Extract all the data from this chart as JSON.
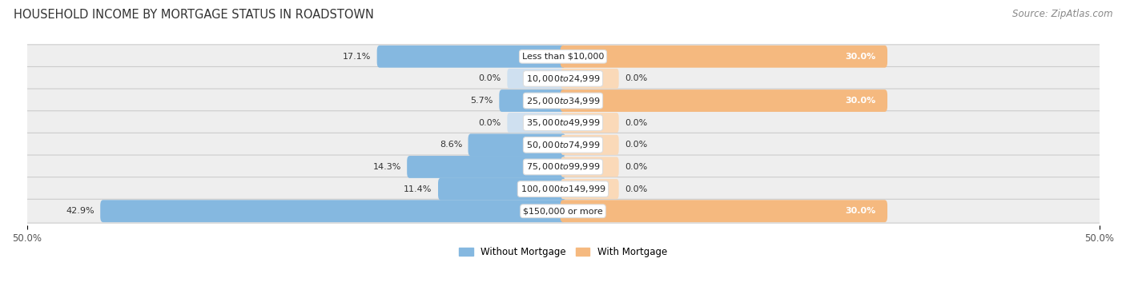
{
  "title": "HOUSEHOLD INCOME BY MORTGAGE STATUS IN ROADSTOWN",
  "source": "Source: ZipAtlas.com",
  "categories": [
    "Less than $10,000",
    "$10,000 to $24,999",
    "$25,000 to $34,999",
    "$35,000 to $49,999",
    "$50,000 to $74,999",
    "$75,000 to $99,999",
    "$100,000 to $149,999",
    "$150,000 or more"
  ],
  "without_mortgage": [
    17.1,
    0.0,
    5.7,
    0.0,
    8.6,
    14.3,
    11.4,
    42.9
  ],
  "with_mortgage": [
    30.0,
    0.0,
    30.0,
    0.0,
    0.0,
    0.0,
    0.0,
    30.0
  ],
  "color_without": "#85b8e0",
  "color_with": "#f5b97f",
  "color_without_faint": "#cfe0f0",
  "color_with_faint": "#fad9b8",
  "xlim_left": -50,
  "xlim_right": 50,
  "legend_labels": [
    "Without Mortgage",
    "With Mortgage"
  ],
  "bg_color": "#f2f2f2",
  "row_bg_color": "#e8e8e8",
  "title_fontsize": 10.5,
  "source_fontsize": 8.5,
  "cat_fontsize": 8,
  "val_fontsize": 8,
  "tick_fontsize": 8.5
}
